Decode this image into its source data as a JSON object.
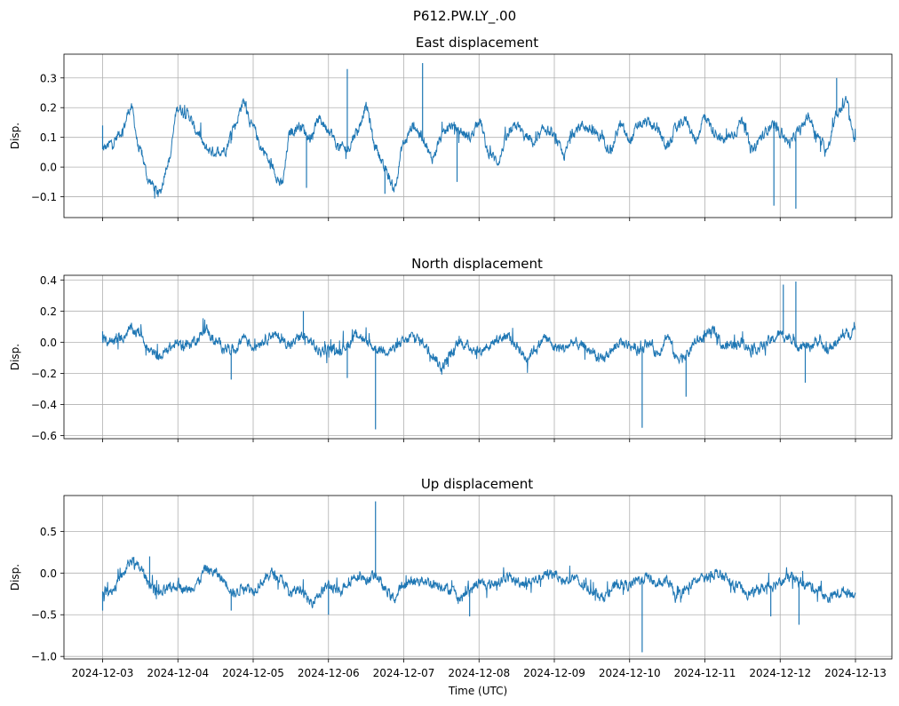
{
  "figure": {
    "suptitle": "P612.PW.LY_.00",
    "xlabel": "Time (UTC)"
  },
  "chart_data": [
    {
      "type": "line",
      "title": "East displacement",
      "xlabel": "Time (UTC)",
      "ylabel": "Disp.",
      "x_range": [
        "2024-12-03",
        "2024-12-13"
      ],
      "ylim": [
        -0.17,
        0.38
      ],
      "yticks": [
        "−0.1",
        "0.0",
        "0.1",
        "0.2",
        "0.3"
      ],
      "ytick_values": [
        -0.1,
        0.0,
        0.1,
        0.2,
        0.3
      ],
      "grid": true,
      "color": "#1f77b4",
      "series": [
        {
          "x": [
            "2024-12-03 00:00",
            "2024-12-03 03:00",
            "2024-12-03 06:00",
            "2024-12-03 09:00",
            "2024-12-03 12:00",
            "2024-12-03 15:00",
            "2024-12-03 18:00",
            "2024-12-03 21:00",
            "2024-12-04 00:00",
            "2024-12-04 03:00",
            "2024-12-04 06:00",
            "2024-12-04 09:00",
            "2024-12-04 12:00",
            "2024-12-04 15:00",
            "2024-12-04 18:00",
            "2024-12-04 21:00",
            "2024-12-05 00:00",
            "2024-12-05 03:00",
            "2024-12-05 06:00",
            "2024-12-05 09:00",
            "2024-12-05 12:00",
            "2024-12-05 15:00",
            "2024-12-05 18:00",
            "2024-12-05 21:00",
            "2024-12-06 00:00",
            "2024-12-06 03:00",
            "2024-12-06 06:00",
            "2024-12-06 09:00",
            "2024-12-06 12:00",
            "2024-12-06 15:00",
            "2024-12-06 18:00",
            "2024-12-06 21:00",
            "2024-12-07 00:00",
            "2024-12-07 03:00",
            "2024-12-07 06:00",
            "2024-12-07 09:00",
            "2024-12-07 12:00",
            "2024-12-07 15:00",
            "2024-12-07 18:00",
            "2024-12-07 21:00",
            "2024-12-08 00:00",
            "2024-12-08 03:00",
            "2024-12-08 06:00",
            "2024-12-08 09:00",
            "2024-12-08 12:00",
            "2024-12-08 15:00",
            "2024-12-08 18:00",
            "2024-12-08 21:00",
            "2024-12-09 00:00",
            "2024-12-09 03:00",
            "2024-12-09 06:00",
            "2024-12-09 09:00",
            "2024-12-09 12:00",
            "2024-12-09 15:00",
            "2024-12-09 18:00",
            "2024-12-09 21:00",
            "2024-12-10 00:00",
            "2024-12-10 03:00",
            "2024-12-10 06:00",
            "2024-12-10 09:00",
            "2024-12-10 12:00",
            "2024-12-10 15:00",
            "2024-12-10 18:00",
            "2024-12-10 21:00",
            "2024-12-11 00:00",
            "2024-12-11 03:00",
            "2024-12-11 06:00",
            "2024-12-11 09:00",
            "2024-12-11 12:00",
            "2024-12-11 15:00",
            "2024-12-11 18:00",
            "2024-12-11 21:00",
            "2024-12-12 00:00",
            "2024-12-12 03:00",
            "2024-12-12 06:00",
            "2024-12-12 09:00",
            "2024-12-12 12:00",
            "2024-12-12 15:00",
            "2024-12-12 18:00",
            "2024-12-12 21:00",
            "2024-12-13 00:00"
          ],
          "y": [
            0.06,
            0.08,
            0.12,
            0.2,
            0.05,
            -0.05,
            -0.09,
            0.02,
            0.2,
            0.18,
            0.12,
            0.06,
            0.05,
            0.06,
            0.14,
            0.22,
            0.13,
            0.06,
            0.0,
            -0.06,
            0.12,
            0.14,
            0.1,
            0.16,
            0.13,
            0.07,
            0.06,
            0.12,
            0.2,
            0.07,
            -0.01,
            -0.07,
            0.08,
            0.14,
            0.1,
            0.03,
            0.1,
            0.14,
            0.12,
            0.1,
            0.16,
            0.05,
            0.02,
            0.1,
            0.14,
            0.1,
            0.08,
            0.13,
            0.1,
            0.04,
            0.12,
            0.14,
            0.12,
            0.1,
            0.06,
            0.14,
            0.09,
            0.14,
            0.15,
            0.12,
            0.07,
            0.13,
            0.16,
            0.09,
            0.17,
            0.12,
            0.09,
            0.11,
            0.16,
            0.05,
            0.1,
            0.14,
            0.12,
            0.08,
            0.12,
            0.17,
            0.1,
            0.06,
            0.18,
            0.22,
            0.09
          ]
        }
      ],
      "spikes": [
        {
          "x": "2024-12-03 00:00",
          "y": 0.14
        },
        {
          "x": "2024-12-05 17:00",
          "y": -0.07
        },
        {
          "x": "2024-12-06 06:00",
          "y": 0.33
        },
        {
          "x": "2024-12-06 18:00",
          "y": -0.09
        },
        {
          "x": "2024-12-07 06:00",
          "y": 0.35
        },
        {
          "x": "2024-12-07 17:00",
          "y": -0.05
        },
        {
          "x": "2024-12-11 22:00",
          "y": -0.13
        },
        {
          "x": "2024-12-12 05:00",
          "y": -0.14
        },
        {
          "x": "2024-12-12 18:00",
          "y": 0.3
        }
      ]
    },
    {
      "type": "line",
      "title": "North displacement",
      "xlabel": "Time (UTC)",
      "ylabel": "Disp.",
      "x_range": [
        "2024-12-03",
        "2024-12-13"
      ],
      "ylim": [
        -0.62,
        0.43
      ],
      "yticks": [
        "−0.6",
        "−0.4",
        "−0.2",
        "0.0",
        "0.2",
        "0.4"
      ],
      "ytick_values": [
        -0.6,
        -0.4,
        -0.2,
        0.0,
        0.2,
        0.4
      ],
      "grid": true,
      "color": "#1f77b4",
      "series": [
        {
          "x": [
            "2024-12-03 00:00",
            "2024-12-03 03:00",
            "2024-12-03 06:00",
            "2024-12-03 09:00",
            "2024-12-03 12:00",
            "2024-12-03 15:00",
            "2024-12-03 18:00",
            "2024-12-03 21:00",
            "2024-12-04 00:00",
            "2024-12-04 03:00",
            "2024-12-04 06:00",
            "2024-12-04 09:00",
            "2024-12-04 12:00",
            "2024-12-04 15:00",
            "2024-12-04 18:00",
            "2024-12-04 21:00",
            "2024-12-05 00:00",
            "2024-12-05 03:00",
            "2024-12-05 06:00",
            "2024-12-05 09:00",
            "2024-12-05 12:00",
            "2024-12-05 15:00",
            "2024-12-05 18:00",
            "2024-12-05 21:00",
            "2024-12-06 00:00",
            "2024-12-06 03:00",
            "2024-12-06 06:00",
            "2024-12-06 09:00",
            "2024-12-06 12:00",
            "2024-12-06 15:00",
            "2024-12-06 18:00",
            "2024-12-06 21:00",
            "2024-12-07 00:00",
            "2024-12-07 03:00",
            "2024-12-07 06:00",
            "2024-12-07 09:00",
            "2024-12-07 12:00",
            "2024-12-07 15:00",
            "2024-12-07 18:00",
            "2024-12-07 21:00",
            "2024-12-08 00:00",
            "2024-12-08 03:00",
            "2024-12-08 06:00",
            "2024-12-08 09:00",
            "2024-12-08 12:00",
            "2024-12-08 15:00",
            "2024-12-08 18:00",
            "2024-12-08 21:00",
            "2024-12-09 00:00",
            "2024-12-09 03:00",
            "2024-12-09 06:00",
            "2024-12-09 09:00",
            "2024-12-09 12:00",
            "2024-12-09 15:00",
            "2024-12-09 18:00",
            "2024-12-09 21:00",
            "2024-12-10 00:00",
            "2024-12-10 03:00",
            "2024-12-10 06:00",
            "2024-12-10 09:00",
            "2024-12-10 12:00",
            "2024-12-10 15:00",
            "2024-12-10 18:00",
            "2024-12-10 21:00",
            "2024-12-11 00:00",
            "2024-12-11 03:00",
            "2024-12-11 06:00",
            "2024-12-11 09:00",
            "2024-12-11 12:00",
            "2024-12-11 15:00",
            "2024-12-11 18:00",
            "2024-12-11 21:00",
            "2024-12-12 00:00",
            "2024-12-12 03:00",
            "2024-12-12 06:00",
            "2024-12-12 09:00",
            "2024-12-12 12:00",
            "2024-12-12 15:00",
            "2024-12-12 18:00",
            "2024-12-12 21:00",
            "2024-12-13 00:00"
          ],
          "y": [
            0.01,
            0.01,
            0.03,
            0.08,
            0.06,
            -0.06,
            -0.1,
            -0.04,
            -0.01,
            -0.02,
            0.02,
            0.08,
            0.0,
            -0.03,
            -0.05,
            0.04,
            -0.03,
            0.01,
            0.05,
            0.02,
            -0.02,
            0.04,
            0.01,
            -0.06,
            -0.04,
            -0.05,
            -0.02,
            0.06,
            0.0,
            -0.04,
            -0.05,
            -0.04,
            0.0,
            0.04,
            0.0,
            -0.07,
            -0.16,
            -0.08,
            0.0,
            -0.03,
            -0.06,
            -0.02,
            0.02,
            0.04,
            -0.02,
            -0.1,
            -0.04,
            0.03,
            -0.03,
            -0.04,
            0.0,
            -0.03,
            -0.06,
            -0.12,
            -0.06,
            0.0,
            -0.02,
            -0.05,
            0.0,
            -0.07,
            0.04,
            -0.1,
            -0.08,
            0.0,
            0.04,
            0.07,
            -0.03,
            -0.01,
            0.0,
            -0.05,
            -0.03,
            0.01,
            0.05,
            0.03,
            -0.02,
            -0.03,
            0.01,
            -0.05,
            0.0,
            0.05,
            0.08
          ]
        }
      ],
      "spikes": [
        {
          "x": "2024-12-03 00:00",
          "y": 0.07
        },
        {
          "x": "2024-12-04 17:00",
          "y": -0.24
        },
        {
          "x": "2024-12-05 16:00",
          "y": 0.2
        },
        {
          "x": "2024-12-06 06:00",
          "y": -0.23
        },
        {
          "x": "2024-12-06 15:00",
          "y": -0.56
        },
        {
          "x": "2024-12-10 04:00",
          "y": -0.55
        },
        {
          "x": "2024-12-10 18:00",
          "y": -0.35
        },
        {
          "x": "2024-12-12 01:00",
          "y": 0.37
        },
        {
          "x": "2024-12-12 05:00",
          "y": 0.39
        },
        {
          "x": "2024-12-12 08:00",
          "y": -0.26
        }
      ]
    },
    {
      "type": "line",
      "title": "Up displacement",
      "xlabel": "Time (UTC)",
      "ylabel": "Disp.",
      "x_range": [
        "2024-12-03",
        "2024-12-13"
      ],
      "ylim": [
        -1.03,
        0.93
      ],
      "yticks": [
        "−1.0",
        "−0.5",
        "0.0",
        "0.5"
      ],
      "ytick_values": [
        -1.0,
        -0.5,
        0.0,
        0.5
      ],
      "xticks": [
        "2024-12-03",
        "2024-12-04",
        "2024-12-05",
        "2024-12-06",
        "2024-12-07",
        "2024-12-08",
        "2024-12-09",
        "2024-12-10",
        "2024-12-11",
        "2024-12-12",
        "2024-12-13"
      ],
      "grid": true,
      "color": "#1f77b4",
      "series": [
        {
          "x": [
            "2024-12-03 00:00",
            "2024-12-03 03:00",
            "2024-12-03 06:00",
            "2024-12-03 09:00",
            "2024-12-03 12:00",
            "2024-12-03 15:00",
            "2024-12-03 18:00",
            "2024-12-03 21:00",
            "2024-12-04 00:00",
            "2024-12-04 03:00",
            "2024-12-04 06:00",
            "2024-12-04 09:00",
            "2024-12-04 12:00",
            "2024-12-04 15:00",
            "2024-12-04 18:00",
            "2024-12-04 21:00",
            "2024-12-05 00:00",
            "2024-12-05 03:00",
            "2024-12-05 06:00",
            "2024-12-05 09:00",
            "2024-12-05 12:00",
            "2024-12-05 15:00",
            "2024-12-05 18:00",
            "2024-12-05 21:00",
            "2024-12-06 00:00",
            "2024-12-06 03:00",
            "2024-12-06 06:00",
            "2024-12-06 09:00",
            "2024-12-06 12:00",
            "2024-12-06 15:00",
            "2024-12-06 18:00",
            "2024-12-06 21:00",
            "2024-12-07 00:00",
            "2024-12-07 03:00",
            "2024-12-07 06:00",
            "2024-12-07 09:00",
            "2024-12-07 12:00",
            "2024-12-07 15:00",
            "2024-12-07 18:00",
            "2024-12-07 21:00",
            "2024-12-08 00:00",
            "2024-12-08 03:00",
            "2024-12-08 06:00",
            "2024-12-08 09:00",
            "2024-12-08 12:00",
            "2024-12-08 15:00",
            "2024-12-08 18:00",
            "2024-12-08 21:00",
            "2024-12-09 00:00",
            "2024-12-09 03:00",
            "2024-12-09 06:00",
            "2024-12-09 09:00",
            "2024-12-09 12:00",
            "2024-12-09 15:00",
            "2024-12-09 18:00",
            "2024-12-09 21:00",
            "2024-12-10 00:00",
            "2024-12-10 03:00",
            "2024-12-10 06:00",
            "2024-12-10 09:00",
            "2024-12-10 12:00",
            "2024-12-10 15:00",
            "2024-12-10 18:00",
            "2024-12-10 21:00",
            "2024-12-11 00:00",
            "2024-12-11 03:00",
            "2024-12-11 06:00",
            "2024-12-11 09:00",
            "2024-12-11 12:00",
            "2024-12-11 15:00",
            "2024-12-11 18:00",
            "2024-12-11 21:00",
            "2024-12-12 00:00",
            "2024-12-12 03:00",
            "2024-12-12 06:00",
            "2024-12-12 09:00",
            "2024-12-12 12:00",
            "2024-12-12 15:00",
            "2024-12-12 18:00",
            "2024-12-12 21:00",
            "2024-12-13 00:00"
          ],
          "y": [
            -0.22,
            -0.2,
            -0.05,
            0.15,
            0.05,
            -0.12,
            -0.25,
            -0.2,
            -0.15,
            -0.2,
            -0.12,
            0.05,
            0.0,
            -0.1,
            -0.25,
            -0.15,
            -0.2,
            -0.1,
            0.0,
            -0.08,
            -0.25,
            -0.18,
            -0.35,
            -0.25,
            -0.15,
            -0.22,
            -0.12,
            -0.02,
            -0.08,
            -0.02,
            -0.2,
            -0.3,
            -0.15,
            -0.1,
            -0.08,
            -0.12,
            -0.15,
            -0.2,
            -0.3,
            -0.2,
            -0.12,
            -0.15,
            -0.1,
            -0.05,
            -0.1,
            -0.12,
            -0.08,
            -0.02,
            0.0,
            -0.1,
            -0.05,
            -0.15,
            -0.2,
            -0.3,
            -0.2,
            -0.12,
            -0.15,
            -0.08,
            -0.05,
            -0.15,
            -0.1,
            -0.3,
            -0.2,
            -0.1,
            -0.05,
            0.0,
            -0.05,
            -0.15,
            -0.2,
            -0.25,
            -0.18,
            -0.15,
            -0.1,
            -0.05,
            -0.1,
            -0.15,
            -0.2,
            -0.3,
            -0.25,
            -0.22,
            -0.25
          ]
        }
      ],
      "spikes": [
        {
          "x": "2024-12-03 00:00",
          "y": -0.45
        },
        {
          "x": "2024-12-03 15:00",
          "y": 0.2
        },
        {
          "x": "2024-12-04 17:00",
          "y": -0.45
        },
        {
          "x": "2024-12-06 00:00",
          "y": -0.5
        },
        {
          "x": "2024-12-06 15:00",
          "y": 0.86
        },
        {
          "x": "2024-12-07 21:00",
          "y": -0.52
        },
        {
          "x": "2024-12-10 04:00",
          "y": -0.95
        },
        {
          "x": "2024-12-11 21:00",
          "y": -0.52
        },
        {
          "x": "2024-12-12 06:00",
          "y": -0.62
        }
      ]
    }
  ]
}
